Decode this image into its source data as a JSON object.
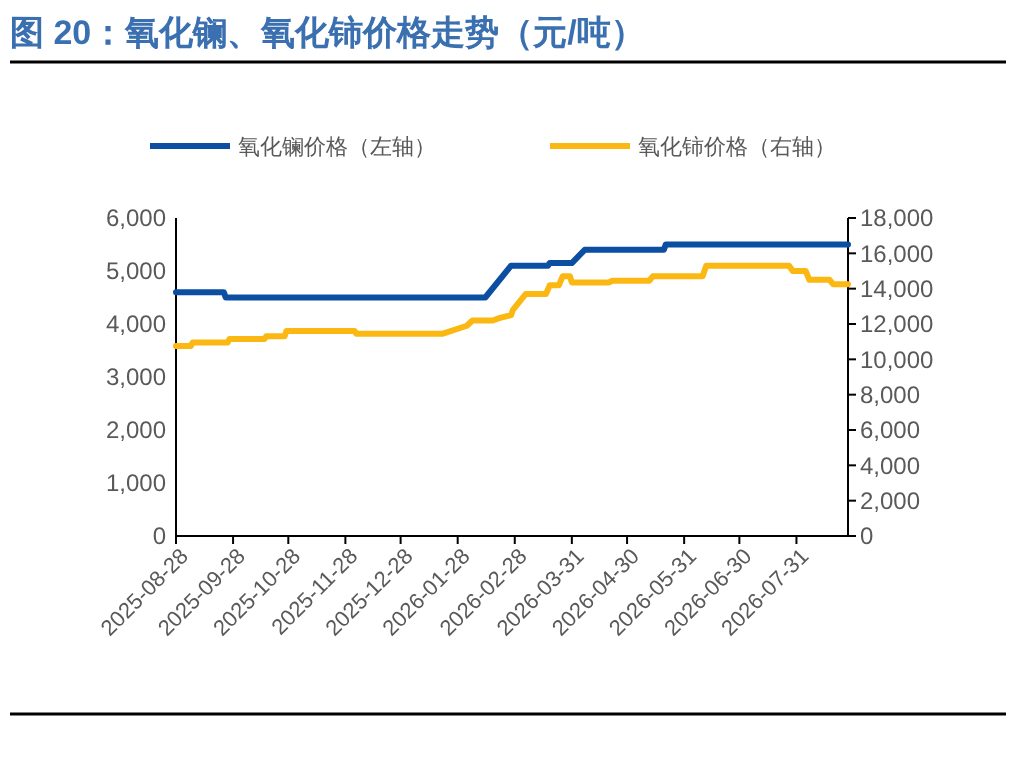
{
  "chart_data": {
    "type": "line",
    "title": "图 20：氧化镧、氧化铈价格走势（元/吨）",
    "xlim": [
      "2025-08-28",
      "2026-08-28"
    ],
    "xticks": [
      "2025-08-28",
      "2025-09-28",
      "2025-10-28",
      "2025-11-28",
      "2025-12-28",
      "2026-01-28",
      "2026-02-28",
      "2026-03-31",
      "2026-04-30",
      "2026-05-31",
      "2026-06-30",
      "2026-07-31"
    ],
    "ylim": [
      0,
      6000
    ],
    "yticks": [
      0,
      {
        "value": 1000,
        "label": "1,000"
      },
      {
        "value": 2000,
        "label": "2,000"
      },
      {
        "value": 3000,
        "label": "3,000"
      },
      {
        "value": 4000,
        "label": "4,000"
      },
      {
        "value": 5000,
        "label": "5,000"
      },
      {
        "value": 6000,
        "label": "6,000"
      }
    ],
    "y2lim": [
      0,
      18000
    ],
    "y2ticks": [
      0,
      {
        "value": 2000,
        "label": "2,000"
      },
      {
        "value": 4000,
        "label": "4,000"
      },
      {
        "value": 6000,
        "label": "6,000"
      },
      {
        "value": 8000,
        "label": "8,000"
      },
      {
        "value": 10000,
        "label": "10,000"
      },
      {
        "value": 12000,
        "label": "12,000"
      },
      {
        "value": 14000,
        "label": "14,000"
      },
      {
        "value": 16000,
        "label": "16,000"
      },
      {
        "value": 18000,
        "label": "18,000"
      }
    ],
    "grid": false,
    "legend": "top",
    "marker": "none",
    "line_style": "solid",
    "series": [
      {
        "name": "氧化镧价格（左轴）",
        "color": "#0b4ea2",
        "axis": "y",
        "x": [
          "2025-08-28",
          "2025-09-23",
          "2025-09-24",
          "2026-02-12",
          "2026-02-26",
          "2026-03-18",
          "2026-03-19",
          "2026-03-31",
          "2026-04-07",
          "2026-05-20",
          "2026-05-21",
          "2026-08-28"
        ],
        "values": [
          4600,
          4600,
          4500,
          4500,
          5100,
          5100,
          5150,
          5150,
          5400,
          5400,
          5500,
          5500
        ]
      },
      {
        "name": "氧化铈价格（右轴）",
        "color": "#fbb812",
        "axis": "y2",
        "x": [
          "2025-08-28",
          "2025-09-05",
          "2025-09-06",
          "2025-09-25",
          "2025-09-26",
          "2025-10-15",
          "2025-10-16",
          "2025-10-26",
          "2025-10-27",
          "2025-12-03",
          "2025-12-04",
          "2026-01-20",
          "2026-02-02",
          "2026-02-05",
          "2026-02-16",
          "2026-02-20",
          "2026-02-26",
          "2026-02-27",
          "2026-03-06",
          "2026-03-17",
          "2026-03-19",
          "2026-03-24",
          "2026-03-26",
          "2026-03-30",
          "2026-03-31",
          "2026-04-20",
          "2026-04-22",
          "2026-05-12",
          "2026-05-14",
          "2026-06-10",
          "2026-06-12",
          "2026-07-27",
          "2026-07-29",
          "2026-08-05",
          "2026-08-07",
          "2026-08-18",
          "2026-08-20",
          "2026-08-28"
        ],
        "values": [
          10750,
          10750,
          10950,
          10950,
          11150,
          11150,
          11300,
          11300,
          11600,
          11600,
          11450,
          11450,
          11900,
          12200,
          12200,
          12350,
          12500,
          12800,
          13700,
          13700,
          14200,
          14200,
          14700,
          14700,
          14350,
          14350,
          14450,
          14450,
          14700,
          14700,
          15300,
          15300,
          15000,
          15000,
          14500,
          14500,
          14250,
          14250
        ]
      }
    ]
  }
}
